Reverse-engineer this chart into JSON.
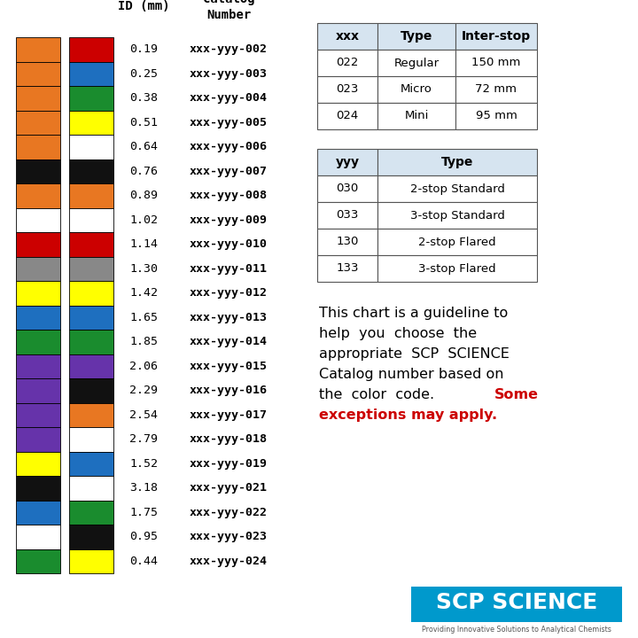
{
  "rows": [
    {
      "id": "0.19",
      "cat": "xxx-yyy-002",
      "col1": "#E87722",
      "col2": "#CC0000"
    },
    {
      "id": "0.25",
      "cat": "xxx-yyy-003",
      "col1": "#E87722",
      "col2": "#1E6FBF"
    },
    {
      "id": "0.38",
      "cat": "xxx-yyy-004",
      "col1": "#E87722",
      "col2": "#1A8C2E"
    },
    {
      "id": "0.51",
      "cat": "xxx-yyy-005",
      "col1": "#E87722",
      "col2": "#FFFF00"
    },
    {
      "id": "0.64",
      "cat": "xxx-yyy-006",
      "col1": "#E87722",
      "col2": "#FFFFFF"
    },
    {
      "id": "0.76",
      "cat": "xxx-yyy-007",
      "col1": "#111111",
      "col2": "#111111"
    },
    {
      "id": "0.89",
      "cat": "xxx-yyy-008",
      "col1": "#E87722",
      "col2": "#E87722"
    },
    {
      "id": "1.02",
      "cat": "xxx-yyy-009",
      "col1": "#FFFFFF",
      "col2": "#FFFFFF"
    },
    {
      "id": "1.14",
      "cat": "xxx-yyy-010",
      "col1": "#CC0000",
      "col2": "#CC0000"
    },
    {
      "id": "1.30",
      "cat": "xxx-yyy-011",
      "col1": "#888888",
      "col2": "#888888"
    },
    {
      "id": "1.42",
      "cat": "xxx-yyy-012",
      "col1": "#FFFF00",
      "col2": "#FFFF00"
    },
    {
      "id": "1.65",
      "cat": "xxx-yyy-013",
      "col1": "#1E6FBF",
      "col2": "#1E6FBF"
    },
    {
      "id": "1.85",
      "cat": "xxx-yyy-014",
      "col1": "#1A8C2E",
      "col2": "#1A8C2E"
    },
    {
      "id": "2.06",
      "cat": "xxx-yyy-015",
      "col1": "#6633AA",
      "col2": "#6633AA"
    },
    {
      "id": "2.29",
      "cat": "xxx-yyy-016",
      "col1": "#6633AA",
      "col2": "#111111"
    },
    {
      "id": "2.54",
      "cat": "xxx-yyy-017",
      "col1": "#6633AA",
      "col2": "#E87722"
    },
    {
      "id": "2.79",
      "cat": "xxx-yyy-018",
      "col1": "#6633AA",
      "col2": "#FFFFFF"
    },
    {
      "id": "1.52",
      "cat": "xxx-yyy-019",
      "col1": "#FFFF00",
      "col2": "#1E6FBF"
    },
    {
      "id": "3.18",
      "cat": "xxx-yyy-021",
      "col1": "#111111",
      "col2": "#FFFFFF"
    },
    {
      "id": "1.75",
      "cat": "xxx-yyy-022",
      "col1": "#1E6FBF",
      "col2": "#1A8C2E"
    },
    {
      "id": "0.95",
      "cat": "xxx-yyy-023",
      "col1": "#FFFFFF",
      "col2": "#111111"
    },
    {
      "id": "0.44",
      "cat": "xxx-yyy-024",
      "col1": "#1A8C2E",
      "col2": "#FFFF00"
    }
  ],
  "table1_headers": [
    "xxx",
    "Type",
    "Inter-stop"
  ],
  "table1_rows": [
    [
      "022",
      "Regular",
      "150 mm"
    ],
    [
      "023",
      "Micro",
      "72 mm"
    ],
    [
      "024",
      "Mini",
      "95 mm"
    ]
  ],
  "table2_headers": [
    "yyy",
    "Type"
  ],
  "table2_rows": [
    [
      "030",
      "2-stop Standard"
    ],
    [
      "033",
      "3-stop Standard"
    ],
    [
      "130",
      "2-stop Flared"
    ],
    [
      "133",
      "3-stop Flared"
    ]
  ],
  "desc_lines": [
    {
      "text": "This chart is a guideline to",
      "color": "black"
    },
    {
      "text": "help  you  choose  the",
      "color": "black"
    },
    {
      "text": "appropriate  SCP  SCIENCE",
      "color": "black"
    },
    {
      "text": "Catalog number based on",
      "color": "black"
    },
    {
      "text": "the  color  code.  ",
      "color": "black"
    },
    {
      "text": "Some",
      "color": "#CC0000"
    },
    {
      "text": "exceptions may apply.",
      "color": "#CC0000"
    }
  ],
  "desc_line5_black": "the  color  code.  ",
  "desc_line5_red": "Some",
  "desc_line6_red": "exceptions may apply.",
  "scp_text": "SCP SCIENCE",
  "scp_subtitle": "Providing Innovative Solutions to Analytical Chemists",
  "scp_bg": "#0099CC",
  "header_bg": "#D6E4F0",
  "border_color": "#555555",
  "bg_color": "#FFFFFF"
}
